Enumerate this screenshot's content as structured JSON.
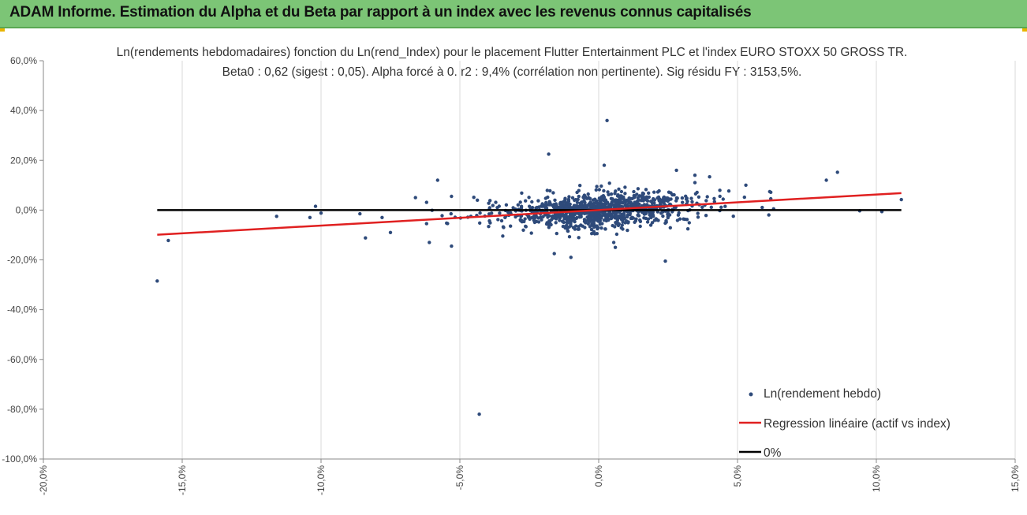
{
  "banner": {
    "title": "ADAM Informe. Estimation du Alpha et du Beta par rapport à un index avec les revenus connus capitalisés"
  },
  "colors": {
    "banner": "#7cc576",
    "points": "#2e4a7a",
    "regression": "#e02020",
    "zero_line": "#000000",
    "grid": "#d9d9d9"
  },
  "chart_data": {
    "type": "scatter",
    "title": "Ln(rendements hebdomadaires) fonction du Ln(rend_Index) pour le placement Flutter Entertainment PLC et l'index EURO STOXX 50 GROSS TR.",
    "subtitle": "Beta0 : 0,62  (sigest : 0,05).  Alpha forcé à 0. r2 : 9,4% (corrélation non pertinente). Sig résidu FY : 3153,5%.",
    "xlim": [
      -20,
      15
    ],
    "ylim": [
      -100,
      60
    ],
    "x_ticks": [
      "-20,0%",
      "-15,0%",
      "-10,0%",
      "-5,0%",
      "0,0%",
      "5,0%",
      "10,0%",
      "15,0%"
    ],
    "y_ticks": [
      "60,0%",
      "40,0%",
      "20,0%",
      "0,0%",
      "-20,0%",
      "-40,0%",
      "-60,0%",
      "-80,0%",
      "-100,0%"
    ],
    "grid": "vertical",
    "legend_position": "bottom-right",
    "series": [
      {
        "name": "Ln(rendement hebdo)",
        "type": "scatter"
      },
      {
        "name": "Regression linéaire (actif vs index)",
        "type": "line",
        "x": [
          -15.9,
          10.9
        ],
        "y": [
          -9.9,
          6.8
        ]
      },
      {
        "name": "0%",
        "type": "line",
        "x": [
          -15.9,
          10.9
        ],
        "y": [
          0,
          0
        ]
      }
    ],
    "outliers": [
      {
        "x": -15.9,
        "y": -28.5
      },
      {
        "x": -15.5,
        "y": -12.2
      },
      {
        "x": -11.6,
        "y": -2.5
      },
      {
        "x": -10.4,
        "y": -3.0
      },
      {
        "x": -10.2,
        "y": 1.5
      },
      {
        "x": -10.0,
        "y": -1.2
      },
      {
        "x": -8.6,
        "y": -1.5
      },
      {
        "x": -8.4,
        "y": -11.2
      },
      {
        "x": -7.8,
        "y": -3.0
      },
      {
        "x": -7.5,
        "y": -9.0
      },
      {
        "x": -6.6,
        "y": 5.0
      },
      {
        "x": -6.1,
        "y": -13.0
      },
      {
        "x": -5.8,
        "y": 12.0
      },
      {
        "x": -5.3,
        "y": -14.5
      },
      {
        "x": -5.3,
        "y": 5.5
      },
      {
        "x": -4.3,
        "y": -82.0
      },
      {
        "x": -1.8,
        "y": 22.5
      },
      {
        "x": -1.6,
        "y": -17.5
      },
      {
        "x": -1.0,
        "y": -19.0
      },
      {
        "x": 0.2,
        "y": 18.0
      },
      {
        "x": 0.3,
        "y": 36.0
      },
      {
        "x": 0.6,
        "y": -15.0
      },
      {
        "x": 2.4,
        "y": -20.5
      },
      {
        "x": 2.8,
        "y": 16.0
      },
      {
        "x": 5.3,
        "y": 10.0
      },
      {
        "x": 6.3,
        "y": 0.5
      },
      {
        "x": 8.2,
        "y": 12.0
      },
      {
        "x": 8.6,
        "y": 15.2
      },
      {
        "x": 9.4,
        "y": -0.3
      },
      {
        "x": 10.2,
        "y": -0.6
      },
      {
        "x": 10.9,
        "y": 4.2
      }
    ]
  }
}
